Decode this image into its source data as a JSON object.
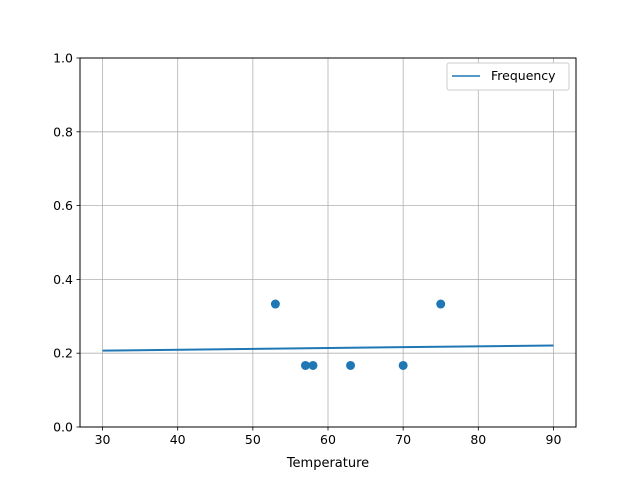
{
  "chart_data": {
    "type": "scatter",
    "title": "",
    "xlabel": "Temperature",
    "ylabel": "",
    "xlim": [
      27,
      93
    ],
    "ylim": [
      0,
      1
    ],
    "xticks": [
      30,
      40,
      50,
      60,
      70,
      80,
      90
    ],
    "yticks": [
      "0.0",
      "0.2",
      "0.4",
      "0.6",
      "0.8",
      "1.0"
    ],
    "grid": true,
    "legend_position": "top-right",
    "color": "#1f77b4",
    "scatter": {
      "x": [
        53,
        57,
        58,
        63,
        70,
        75
      ],
      "y": [
        0.3333,
        0.1667,
        0.1667,
        0.1667,
        0.1667,
        0.3333
      ]
    },
    "line": {
      "name": "Frequency",
      "x": [
        30,
        90
      ],
      "y": [
        0.207,
        0.221
      ]
    }
  }
}
